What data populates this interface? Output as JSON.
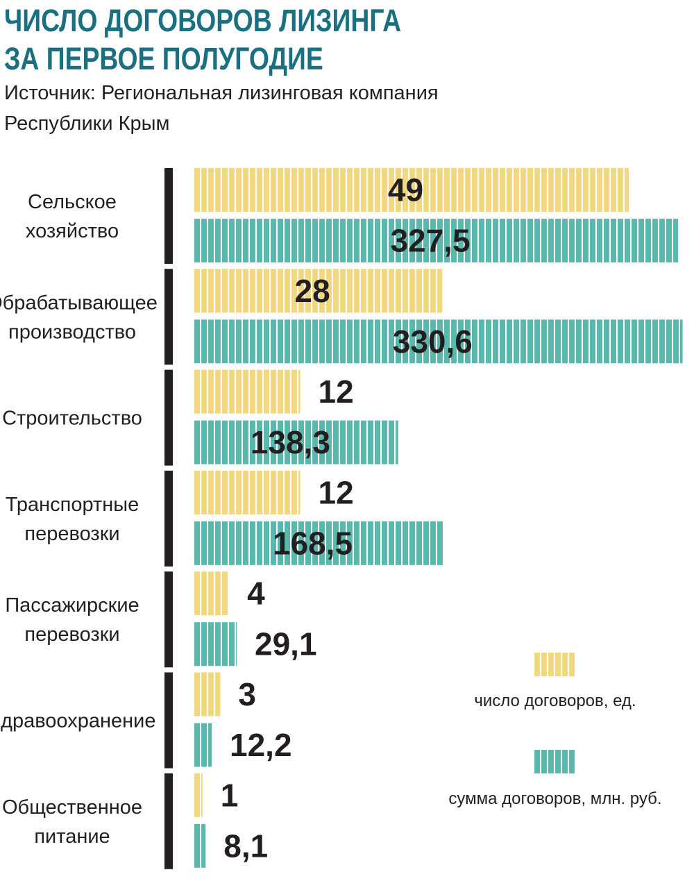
{
  "title_line1": "ЧИСЛО ДОГОВОРОВ ЛИЗИНГА",
  "title_line2": "ЗА ПЕРВОЕ ПОЛУГОДИЕ",
  "source_line1": "Источник: Региональная лизинговая компания",
  "source_line2": "Республики Крым",
  "colors": {
    "title": "#1a6f80",
    "count_bar": "#f1d77f",
    "sum_bar": "#5ab9ac",
    "divider": "#231f20",
    "value_text": "#231f20"
  },
  "chart_data": {
    "type": "bar",
    "orientation": "horizontal",
    "categories": [
      [
        "Сельское",
        "хозяйство"
      ],
      [
        "Обрабатывающее",
        "производство"
      ],
      [
        "Строительство"
      ],
      [
        "Транспортные",
        "перевозки"
      ],
      [
        "Пассажирские",
        "перевозки"
      ],
      [
        "Здравоохранение"
      ],
      [
        "Общественное",
        "питание"
      ]
    ],
    "series": [
      {
        "name": "число договоров, ед.",
        "values": [
          49,
          28,
          12,
          12,
          4,
          3,
          1
        ],
        "labels": [
          "49",
          "28",
          "12",
          "12",
          "4",
          "3",
          "1"
        ]
      },
      {
        "name": "сумма договоров, млн. руб.",
        "values": [
          327.5,
          330.6,
          138.3,
          168.5,
          29.1,
          12.2,
          8.1
        ],
        "labels": [
          "327,5",
          "330,6",
          "138,3",
          "168,5",
          "29,1",
          "12,2",
          "8,1"
        ]
      }
    ],
    "legend_position": "bottom-right",
    "grid": false
  }
}
